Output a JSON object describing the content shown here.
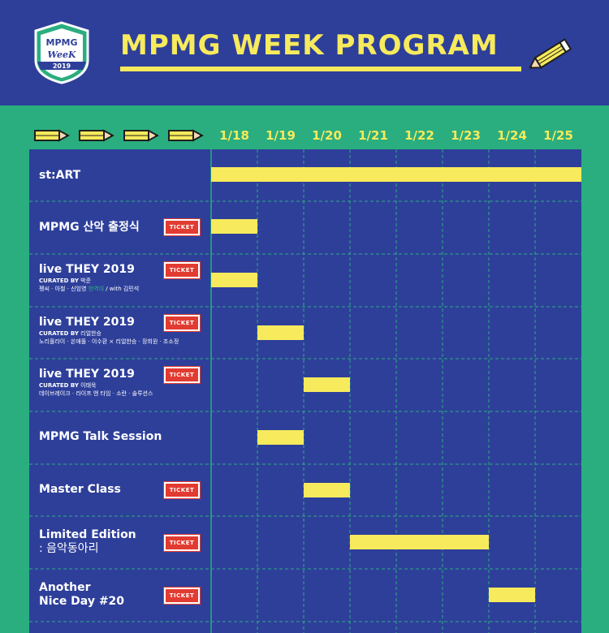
{
  "badge": {
    "top_text": "MPMG",
    "middle_text": "WeeK",
    "year": "2019"
  },
  "header": {
    "title": "MPMG WEEK PROGRAM"
  },
  "dates": [
    "1/18",
    "1/19",
    "1/20",
    "1/21",
    "1/22",
    "1/23",
    "1/24",
    "1/25"
  ],
  "colors": {
    "navy": "#2e3f9a",
    "green": "#2aae7f",
    "yellow": "#f7ea5c",
    "ticket_red": "#e23b31"
  },
  "ticket_label": "TICKET",
  "rows": [
    {
      "title": "st:ART",
      "ticket": false,
      "start": 1,
      "end": 8
    },
    {
      "title": "MPMG 산악 출정식",
      "ticket": true,
      "start": 1,
      "end": 1
    },
    {
      "title": "live THEY 2019",
      "ticket": true,
      "curated_prefix": "CURATED BY",
      "curator": "박준",
      "artists": "펭씨 · 아철 · 신임영",
      "artists_note": "현역대",
      "artists_suffix": " / with 김민석",
      "start": 1,
      "end": 1
    },
    {
      "title": "live THEY 2019",
      "ticket": true,
      "curated_prefix": "CURATED BY",
      "curator": "리얼한승",
      "artists": "노리플라이 · 쏜애플 · 이수환 × 리얼한승 · 장희원 · 조소정",
      "start": 2,
      "end": 2
    },
    {
      "title": "live THEY 2019",
      "ticket": true,
      "curated_prefix": "CURATED BY",
      "curator": "이태욱",
      "artists": "데이브레이크 · 라이프 앤 타임 · 소란 · 솔루션스",
      "start": 3,
      "end": 3
    },
    {
      "title": "MPMG Talk Session",
      "ticket": false,
      "start": 2,
      "end": 2
    },
    {
      "title": "Master Class",
      "ticket": true,
      "start": 3,
      "end": 3
    },
    {
      "title": "Limited Edition",
      "title2": ": 음악동아리",
      "ticket": true,
      "start": 4,
      "end": 6
    },
    {
      "title": "Another",
      "title2": "Nice Day #20",
      "ticket": true,
      "start": 7,
      "end": 7
    }
  ]
}
